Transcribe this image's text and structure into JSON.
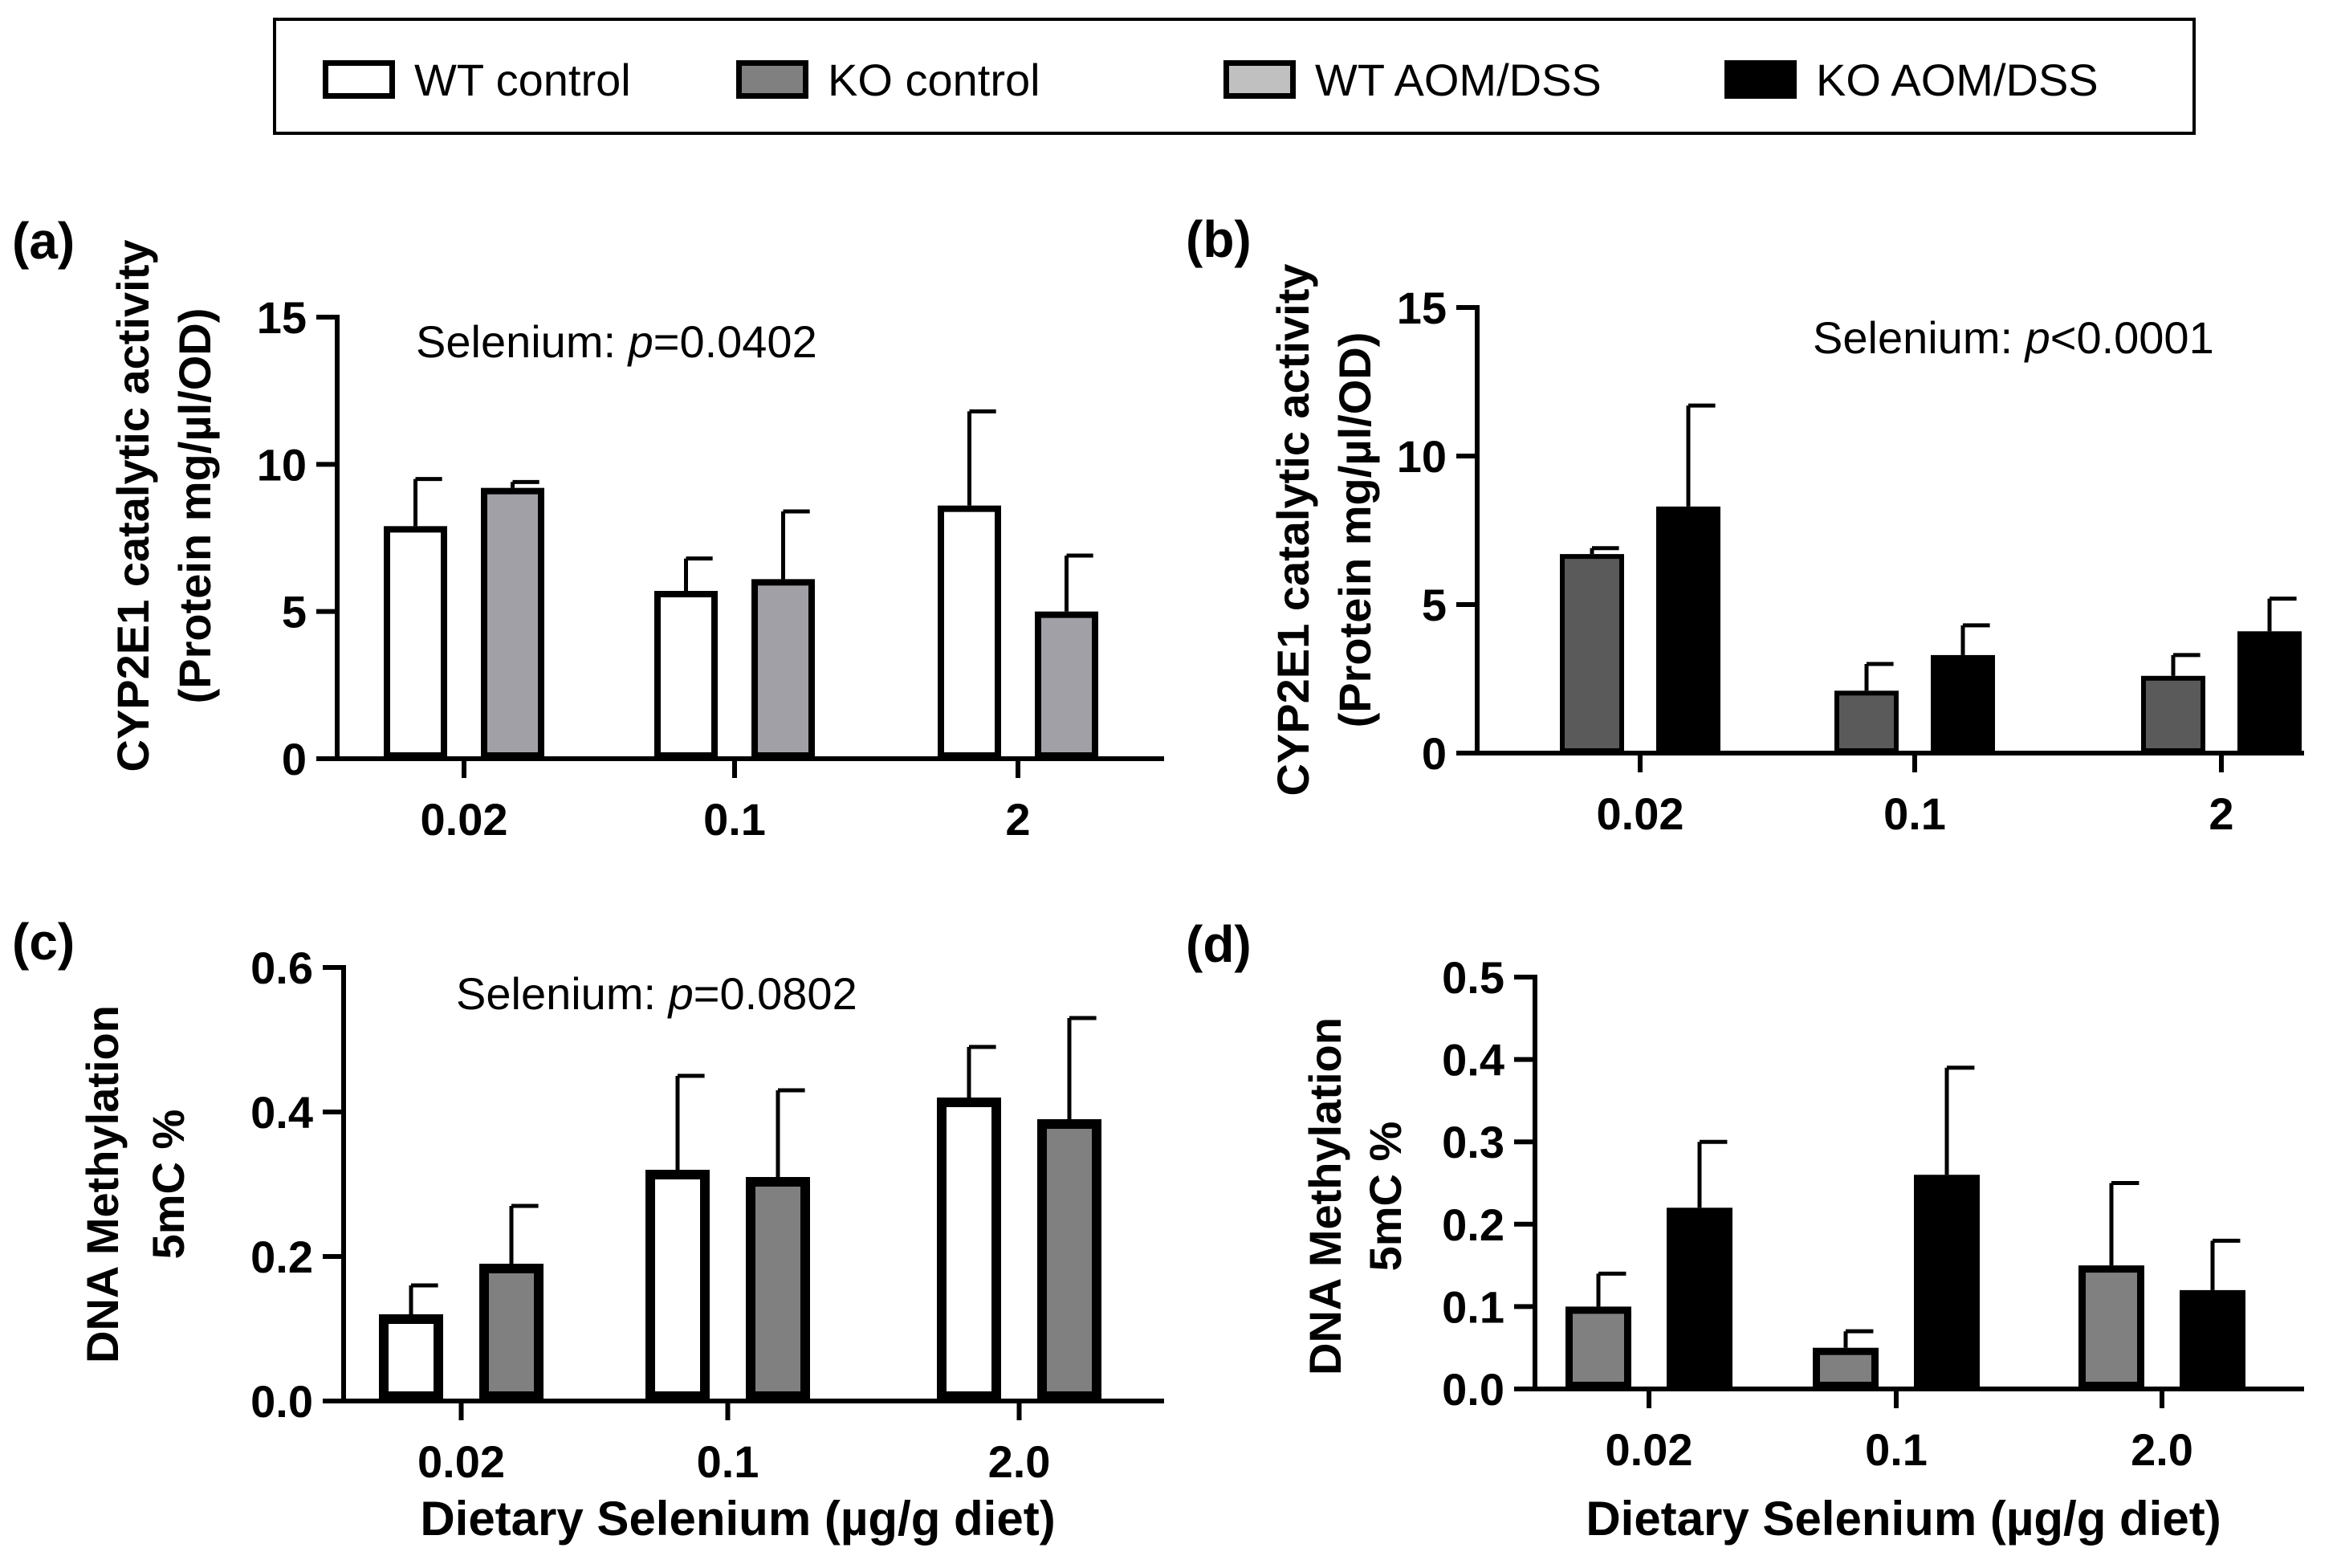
{
  "legend": {
    "items": [
      {
        "label": "WT control",
        "color": "#ffffff"
      },
      {
        "label": "KO control",
        "color": "#808080"
      },
      {
        "label": "WT AOM/DSS",
        "color": "#c0c0c0"
      },
      {
        "label": "KO AOM/DSS",
        "color": "#000000"
      }
    ]
  },
  "chart_data": [
    {
      "type": "bar",
      "panel": "(a)",
      "ylabel_line1": "CYP2E1 catalytic activity",
      "ylabel_line2": "(Protein mg/µl/OD)",
      "xlabel": "",
      "annotation_prefix": "Selenium: ",
      "annotation_p": "p",
      "annotation_value": "=0.0402",
      "categories": [
        "0.02",
        "0.1",
        "2"
      ],
      "ylim": [
        0,
        15
      ],
      "yticks": [
        0,
        5,
        10,
        15
      ],
      "ytick_labels": [
        "0",
        "5",
        "10",
        "15"
      ],
      "series": [
        {
          "name": "WT control",
          "color": "#ffffff",
          "values": [
            7.9,
            5.7,
            8.6
          ],
          "errors": [
            1.6,
            1.1,
            3.2
          ]
        },
        {
          "name": "KO control",
          "color": "#a0a0a6",
          "values": [
            9.2,
            6.1,
            5.0
          ],
          "errors": [
            0.2,
            2.3,
            1.9
          ]
        }
      ]
    },
    {
      "type": "bar",
      "panel": "(b)",
      "ylabel_line1": "CYP2E1 catalytic activity",
      "ylabel_line2": "(Protein mg/µl/OD)",
      "xlabel": "",
      "annotation_prefix": "Selenium: ",
      "annotation_p": "p",
      "annotation_value": "<0.0001",
      "categories": [
        "0.02",
        "0.1",
        "2"
      ],
      "ylim": [
        0,
        15
      ],
      "yticks": [
        0,
        5,
        10,
        15
      ],
      "ytick_labels": [
        "0",
        "5",
        "10",
        "15"
      ],
      "series": [
        {
          "name": "WT AOM/DSS",
          "color": "#5a5a5a",
          "values": [
            6.7,
            2.1,
            2.6
          ],
          "errors": [
            0.2,
            0.9,
            0.7
          ]
        },
        {
          "name": "KO AOM/DSS",
          "color": "#000000",
          "values": [
            8.3,
            3.3,
            4.1
          ],
          "errors": [
            3.4,
            1.0,
            1.1
          ]
        }
      ]
    },
    {
      "type": "bar",
      "panel": "(c)",
      "ylabel_line1": "DNA Methylation",
      "ylabel_line2": "5mC %",
      "xlabel": "Dietary Selenium (µg/g diet)",
      "annotation_prefix": "Selenium: ",
      "annotation_p": "p",
      "annotation_value": "=0.0802",
      "categories": [
        "0.02",
        "0.1",
        "2.0"
      ],
      "ylim": [
        0,
        0.6
      ],
      "yticks": [
        0,
        0.2,
        0.4,
        0.6
      ],
      "ytick_labels": [
        "0.0",
        "0.2",
        "0.4",
        "0.6"
      ],
      "series": [
        {
          "name": "WT control",
          "color": "#ffffff",
          "values": [
            0.12,
            0.32,
            0.42
          ],
          "errors": [
            0.04,
            0.13,
            0.07
          ]
        },
        {
          "name": "KO control",
          "color": "#808080",
          "values": [
            0.19,
            0.31,
            0.39
          ],
          "errors": [
            0.08,
            0.12,
            0.14
          ]
        }
      ]
    },
    {
      "type": "bar",
      "panel": "(d)",
      "ylabel_line1": "DNA Methylation",
      "ylabel_line2": "5mC %",
      "xlabel": "Dietary Selenium (µg/g diet)",
      "annotation_prefix": "",
      "annotation_p": "",
      "annotation_value": "",
      "categories": [
        "0.02",
        "0.1",
        "2.0"
      ],
      "ylim": [
        0,
        0.5
      ],
      "yticks": [
        0,
        0.1,
        0.2,
        0.3,
        0.4,
        0.5
      ],
      "ytick_labels": [
        "0.0",
        "0.1",
        "0.2",
        "0.3",
        "0.4",
        "0.5"
      ],
      "series": [
        {
          "name": "WT AOM/DSS",
          "color": "#808080",
          "values": [
            0.1,
            0.05,
            0.15
          ],
          "errors": [
            0.04,
            0.02,
            0.1
          ]
        },
        {
          "name": "KO AOM/DSS",
          "color": "#000000",
          "values": [
            0.22,
            0.26,
            0.12
          ],
          "errors": [
            0.08,
            0.13,
            0.06
          ]
        }
      ]
    }
  ]
}
